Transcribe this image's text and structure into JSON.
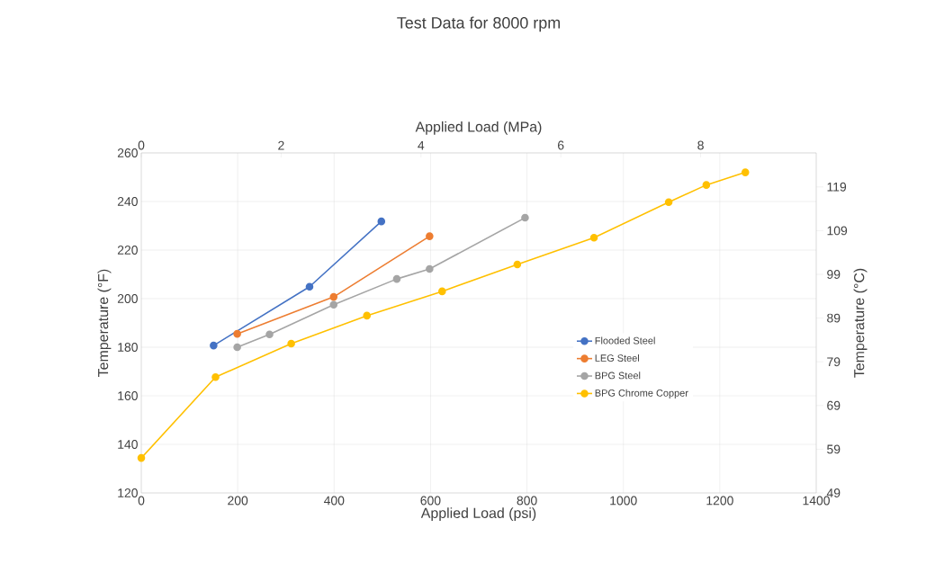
{
  "chart_data": {
    "type": "line",
    "title": "Test Data for 8000 rpm",
    "xlabel": "Applied Load (psi)",
    "ylabel": "Temperature (°F)",
    "x2label": "Applied Load (MPa)",
    "y2label": "Temperature (°C)",
    "xlim": [
      0,
      1400
    ],
    "xticks": [
      0,
      200,
      400,
      600,
      800,
      1000,
      1200,
      1400
    ],
    "ylim": [
      120,
      260
    ],
    "yticks": [
      120,
      140,
      160,
      180,
      200,
      220,
      240,
      260
    ],
    "x2lim": [
      0,
      9.653
    ],
    "x2ticks": [
      0,
      2,
      4,
      6,
      8
    ],
    "y2lim": [
      48.89,
      126.67
    ],
    "y2ticks": [
      {
        "value": 48.89,
        "label": "49"
      },
      {
        "value": 58.89,
        "label": "59"
      },
      {
        "value": 68.89,
        "label": "69"
      },
      {
        "value": 78.89,
        "label": "79"
      },
      {
        "value": 88.89,
        "label": "89"
      },
      {
        "value": 98.89,
        "label": "99"
      },
      {
        "value": 108.89,
        "label": "109"
      },
      {
        "value": 118.89,
        "label": "119"
      }
    ],
    "grid": true,
    "legend": "right",
    "marker": "circle",
    "line_style": "solid",
    "series": [
      {
        "name": "Flooded Steel",
        "color": "#4472c4",
        "x": [
          150,
          349,
          498
        ],
        "values": [
          180.7,
          204.9,
          231.8
        ]
      },
      {
        "name": "LEG Steel",
        "color": "#ed7d31",
        "x": [
          199,
          399,
          598
        ],
        "values": [
          185.5,
          200.7,
          225.7
        ]
      },
      {
        "name": "BPG Steel",
        "color": "#a5a5a5",
        "x": [
          199,
          266,
          399,
          530,
          598,
          796
        ],
        "values": [
          180,
          185.3,
          197.5,
          208.1,
          212.2,
          233.3
        ]
      },
      {
        "name": "BPG Chrome Copper",
        "color": "#ffc000",
        "x": [
          0,
          154,
          311,
          468,
          624,
          780,
          939,
          1094,
          1172,
          1253
        ],
        "values": [
          134.4,
          167.7,
          181.5,
          193,
          203,
          214.1,
          225.1,
          239.7,
          246.8,
          252
        ]
      }
    ]
  }
}
